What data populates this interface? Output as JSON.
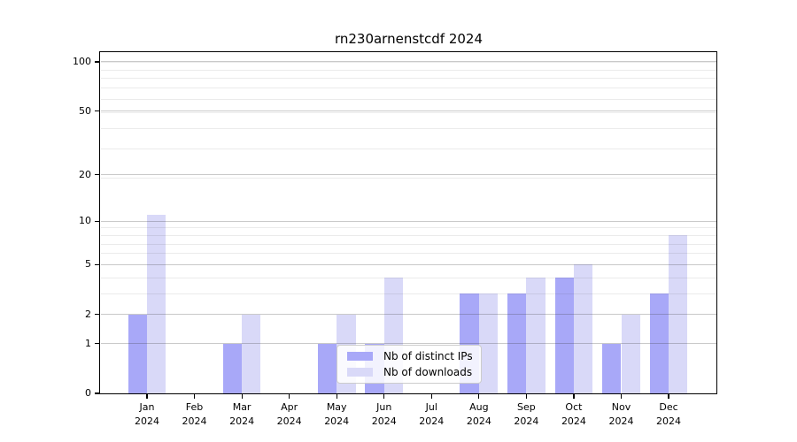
{
  "chart_data": {
    "type": "bar",
    "title": "rn230arnenstcdf 2024",
    "categories": [
      "Jan 2024",
      "Feb 2024",
      "Mar 2024",
      "Apr 2024",
      "May 2024",
      "Jun 2024",
      "Jul 2024",
      "Aug 2024",
      "Sep 2024",
      "Oct 2024",
      "Nov 2024",
      "Dec 2024"
    ],
    "x_tick_top": [
      "Jan",
      "Feb",
      "Mar",
      "Apr",
      "May",
      "Jun",
      "Jul",
      "Aug",
      "Sep",
      "Oct",
      "Nov",
      "Dec"
    ],
    "x_tick_bottom": "2024",
    "series": [
      {
        "name": "Nb of distinct IPs",
        "color": "#a8a8f8",
        "values": [
          2,
          0,
          1,
          0,
          1,
          1,
          0,
          3,
          3,
          4,
          1,
          3
        ]
      },
      {
        "name": "Nb of downloads",
        "color": "#d9d9f8",
        "values": [
          11,
          0,
          2,
          0,
          2,
          4,
          0,
          3,
          4,
          5,
          2,
          8
        ]
      }
    ],
    "yscale": "log10(value+1)",
    "y_major_ticks": [
      0,
      1,
      2,
      5,
      10,
      20,
      50,
      100
    ],
    "y_minor_gridlines": [
      3,
      4,
      6,
      7,
      8,
      9,
      19,
      29,
      39,
      49,
      59,
      69,
      79,
      89,
      99
    ],
    "ylim": [
      0,
      115
    ],
    "grid": "horizontal major+minor, drawn above bars",
    "legend_position": "lower center inside plot",
    "xlabel": "",
    "ylabel": ""
  }
}
